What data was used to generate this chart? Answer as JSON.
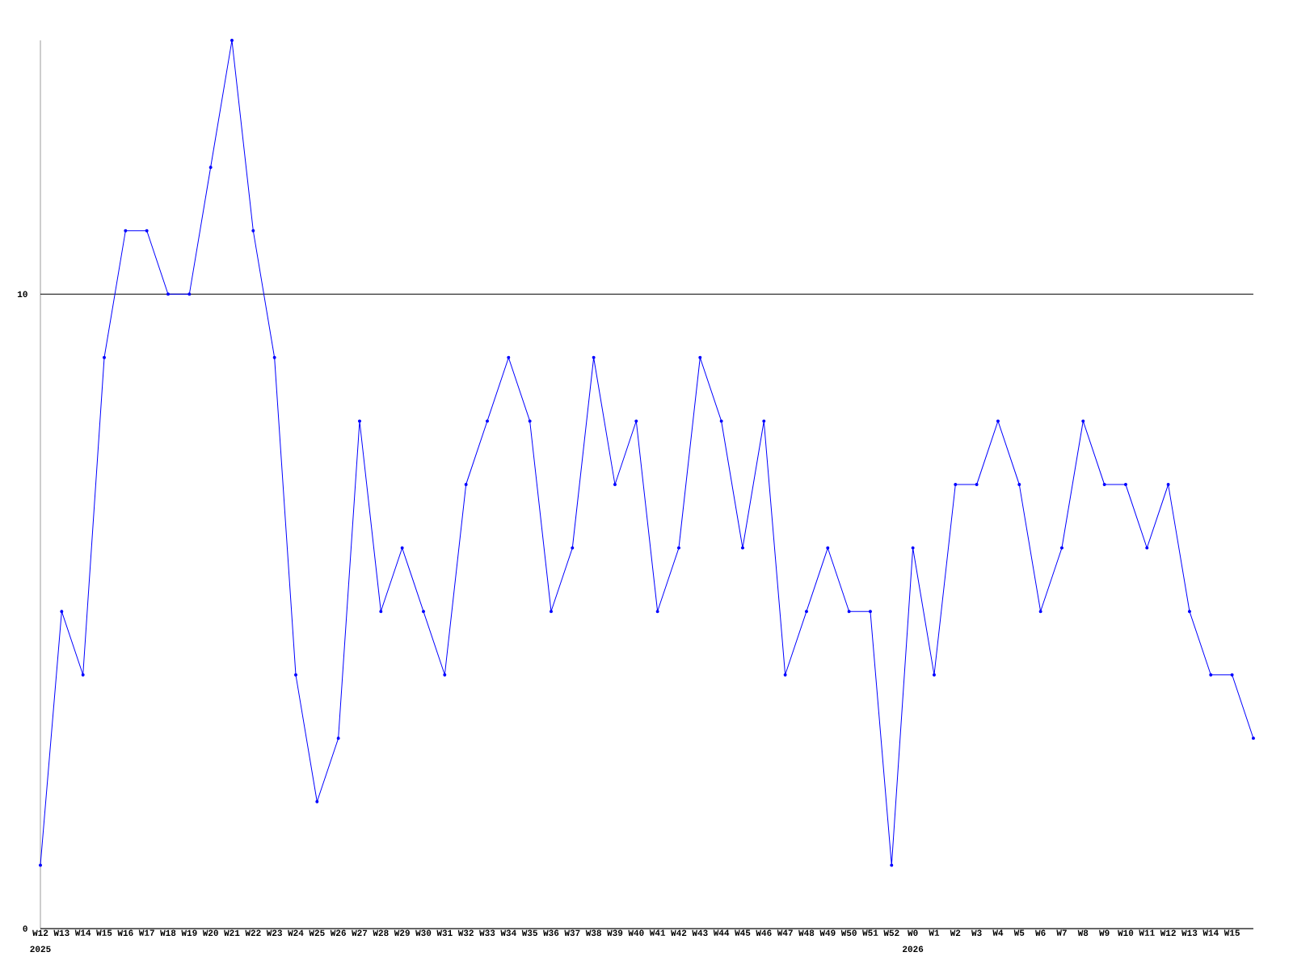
{
  "chart_data": {
    "type": "line",
    "categories": [
      "W12",
      "W13",
      "W14",
      "W15",
      "W16",
      "W17",
      "W18",
      "W19",
      "W20",
      "W21",
      "W22",
      "W23",
      "W24",
      "W25",
      "W26",
      "W27",
      "W28",
      "W29",
      "W30",
      "W31",
      "W32",
      "W33",
      "W34",
      "W35",
      "W36",
      "W37",
      "W38",
      "W39",
      "W40",
      "W41",
      "W42",
      "W43",
      "W44",
      "W45",
      "W46",
      "W47",
      "W48",
      "W49",
      "W50",
      "W51",
      "W52",
      "W0",
      "W1",
      "W2",
      "W3",
      "W4",
      "W5",
      "W6",
      "W7",
      "W8",
      "W9",
      "W10",
      "W11",
      "W12",
      "W13",
      "W14",
      "W15",
      null
    ],
    "values": [
      1,
      5,
      4,
      9,
      11,
      11,
      10,
      10,
      12,
      14,
      11,
      9,
      4,
      2,
      3,
      8,
      5,
      6,
      5,
      4,
      7,
      8,
      9,
      8,
      5,
      6,
      9,
      7,
      8,
      5,
      6,
      9,
      8,
      6,
      8,
      4,
      5,
      6,
      5,
      5,
      1,
      6,
      4,
      7,
      7,
      8,
      7,
      5,
      6,
      8,
      7,
      7,
      6,
      7,
      5,
      4,
      4,
      3
    ],
    "color": "#0000ff",
    "marker": "circle",
    "grid": "y",
    "ylim": [
      0,
      14
    ],
    "yticks": [
      0,
      10
    ],
    "annotations": [
      "2025",
      "2026"
    ]
  }
}
